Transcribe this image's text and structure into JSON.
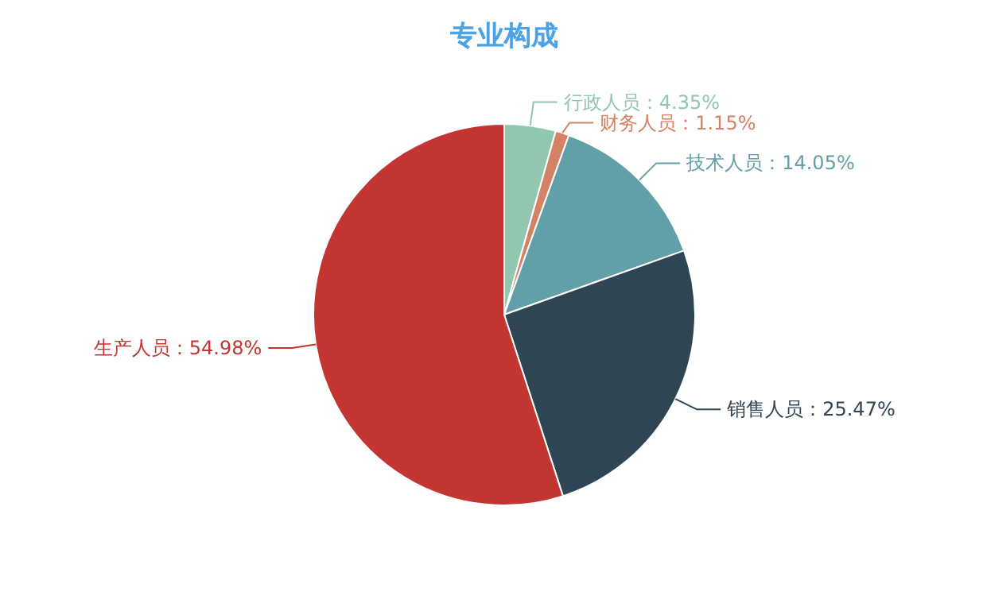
{
  "chart_data": {
    "type": "pie",
    "title": "专业构成",
    "categories": [
      "行政人员",
      "财务人员",
      "技术人员",
      "销售人员",
      "生产人员"
    ],
    "values": [
      4.35,
      1.15,
      14.05,
      25.47,
      54.98
    ],
    "colors": [
      "#91c7ae",
      "#d48265",
      "#61a0a8",
      "#2f4554",
      "#c23531"
    ],
    "value_labels": [
      "：4.35%",
      "：1.15%",
      "：14.05%",
      "：25.47%",
      "：54.98%"
    ]
  }
}
